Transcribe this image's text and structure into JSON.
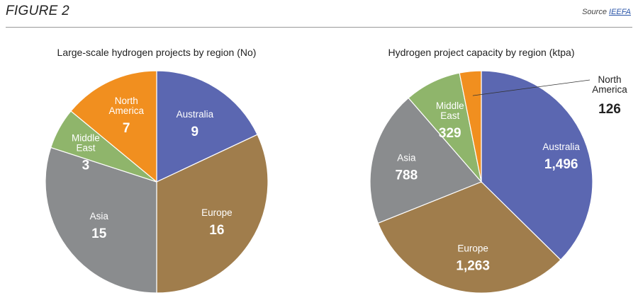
{
  "figure_title": "FIGURE 2",
  "source": {
    "prefix": "Source",
    "link_text": "IEEFA"
  },
  "chart_data": [
    {
      "type": "pie",
      "title": "Large-scale hydrogen projects by region (No)",
      "slices": [
        {
          "name": "Australia",
          "value": 9,
          "value_label": "9",
          "color": "#5b67b1"
        },
        {
          "name": "Europe",
          "value": 16,
          "value_label": "16",
          "color": "#a07d4c"
        },
        {
          "name": "Asia",
          "value": 15,
          "value_label": "15",
          "color": "#8a8c8e"
        },
        {
          "name": "Middle East",
          "value": 3,
          "value_label": "3",
          "color": "#8fb56b"
        },
        {
          "name": "North America",
          "value": 7,
          "value_label": "7",
          "color": "#f18f1f"
        }
      ]
    },
    {
      "type": "pie",
      "title": "Hydrogen project capacity by region (ktpa)",
      "slices": [
        {
          "name": "Australia",
          "value": 1496,
          "value_label": "1,496",
          "color": "#5b67b1"
        },
        {
          "name": "Europe",
          "value": 1263,
          "value_label": "1,263",
          "color": "#a07d4c"
        },
        {
          "name": "Asia",
          "value": 788,
          "value_label": "788",
          "color": "#8a8c8e"
        },
        {
          "name": "Middle East",
          "value": 329,
          "value_label": "329",
          "color": "#8fb56b"
        },
        {
          "name": "North America",
          "value": 126,
          "value_label": "126",
          "color": "#f18f1f"
        }
      ]
    }
  ]
}
